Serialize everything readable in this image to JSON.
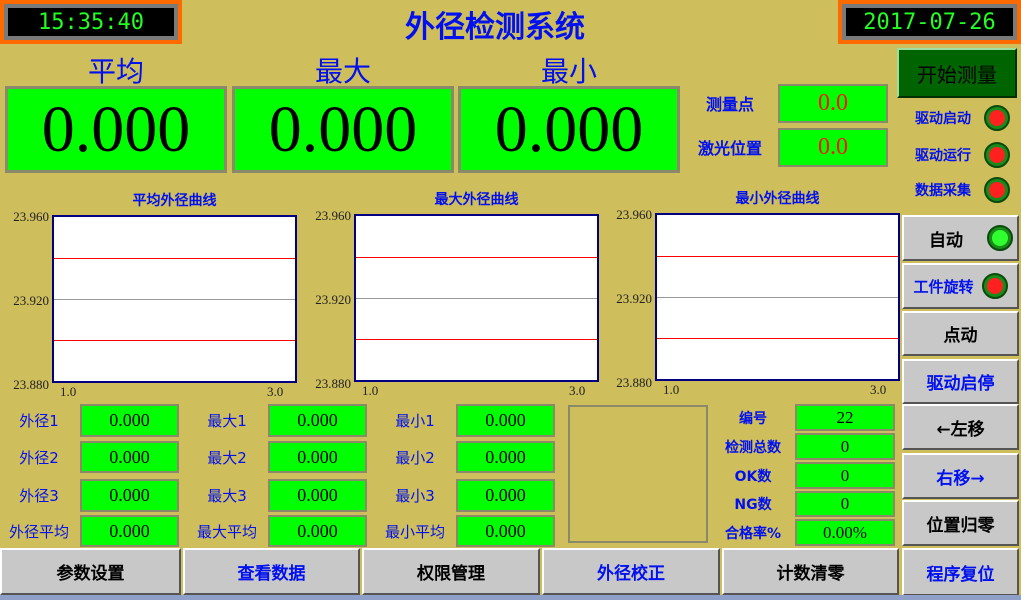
{
  "header": {
    "time": "15:35:40",
    "date": "2017-07-26",
    "title": "外径检测系统"
  },
  "main": {
    "labels": [
      "平均",
      "最大",
      "最小"
    ],
    "values": [
      "0.000",
      "0.000",
      "0.000"
    ]
  },
  "measure": {
    "point_label": "测量点",
    "point_value": "0.0",
    "laser_label": "激光位置",
    "laser_value": "0.0"
  },
  "start_button": "开始测量",
  "indicators": [
    {
      "label": "驱动启动",
      "state": "red"
    },
    {
      "label": "驱动运行",
      "state": "red"
    },
    {
      "label": "数据采集",
      "state": "red"
    }
  ],
  "side_buttons": [
    {
      "label": "自动",
      "lamp": "green"
    },
    {
      "label": "工件旋转",
      "lamp": "red"
    },
    {
      "label": "点动"
    },
    {
      "label": "驱动启停"
    },
    {
      "label": "←左移"
    },
    {
      "label": "右移→"
    },
    {
      "label": "位置归零"
    },
    {
      "label": "程序复位"
    }
  ],
  "colors": {
    "background": "#cfbe5c",
    "value_box": "#00ff00",
    "label": "#0010ee",
    "limit_line": "#ff0000",
    "lamp_red": "#ff2020",
    "lamp_green": "#30ff30"
  },
  "chart_data": [
    {
      "type": "line",
      "title": "平均外径曲线",
      "ylim": [
        23.88,
        23.96
      ],
      "xlim": [
        1.0,
        3.0
      ],
      "yticks": [
        "23.960",
        "23.920",
        "23.880"
      ],
      "xticks": [
        "1.0",
        "3.0"
      ],
      "limit_lines": [
        23.94,
        23.9
      ],
      "center_line": 23.92,
      "series": []
    },
    {
      "type": "line",
      "title": "最大外径曲线",
      "ylim": [
        23.88,
        23.96
      ],
      "xlim": [
        1.0,
        3.0
      ],
      "yticks": [
        "23.960",
        "23.920",
        "23.880"
      ],
      "xticks": [
        "1.0",
        "3.0"
      ],
      "limit_lines": [
        23.94,
        23.9
      ],
      "center_line": 23.92,
      "series": []
    },
    {
      "type": "line",
      "title": "最小外径曲线",
      "ylim": [
        23.88,
        23.96
      ],
      "xlim": [
        1.0,
        3.0
      ],
      "yticks": [
        "23.960",
        "23.920",
        "23.880"
      ],
      "xticks": [
        "1.0",
        "3.0"
      ],
      "limit_lines": [
        23.94,
        23.9
      ],
      "center_line": 23.92,
      "series": []
    }
  ],
  "fields": [
    [
      {
        "label": "外径1",
        "value": "0.000"
      },
      {
        "label": "外径2",
        "value": "0.000"
      },
      {
        "label": "外径3",
        "value": "0.000"
      },
      {
        "label": "外径平均",
        "value": "0.000"
      }
    ],
    [
      {
        "label": "最大1",
        "value": "0.000"
      },
      {
        "label": "最大2",
        "value": "0.000"
      },
      {
        "label": "最大3",
        "value": "0.000"
      },
      {
        "label": "最大平均",
        "value": "0.000"
      }
    ],
    [
      {
        "label": "最小1",
        "value": "0.000"
      },
      {
        "label": "最小2",
        "value": "0.000"
      },
      {
        "label": "最小3",
        "value": "0.000"
      },
      {
        "label": "最小平均",
        "value": "0.000"
      }
    ]
  ],
  "stats": [
    {
      "label": "编号",
      "value": "22"
    },
    {
      "label": "检测总数",
      "value": "0"
    },
    {
      "label": "OK数",
      "value": "0"
    },
    {
      "label": "NG数",
      "value": "0"
    },
    {
      "label": "合格率%",
      "value": "0.00%"
    }
  ],
  "bottom_buttons": [
    {
      "label": "参数设置",
      "blue": false
    },
    {
      "label": "查看数据",
      "blue": true
    },
    {
      "label": "权限管理",
      "blue": false
    },
    {
      "label": "外径校正",
      "blue": true
    },
    {
      "label": "计数清零",
      "blue": false
    }
  ]
}
